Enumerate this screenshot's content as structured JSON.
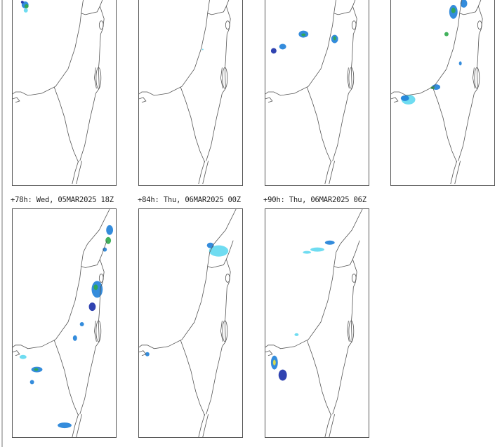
{
  "panels_top": [
    {
      "label": ""
    },
    {
      "label": ""
    },
    {
      "label": ""
    },
    {
      "label": ""
    }
  ],
  "panels_bottom": [
    {
      "label": "+78h: Wed, 05MAR2025 18Z"
    },
    {
      "label": "+84h: Thu, 06MAR2025 00Z"
    },
    {
      "label": "+90h: Thu, 06MAR2025 06Z"
    }
  ],
  "colors": {
    "outline": "#555555",
    "light": "#5fd8f0",
    "medium": "#1e7fd8",
    "dark": "#1a2fa8",
    "green": "#2ea84a",
    "yellow": "#e8e040"
  }
}
